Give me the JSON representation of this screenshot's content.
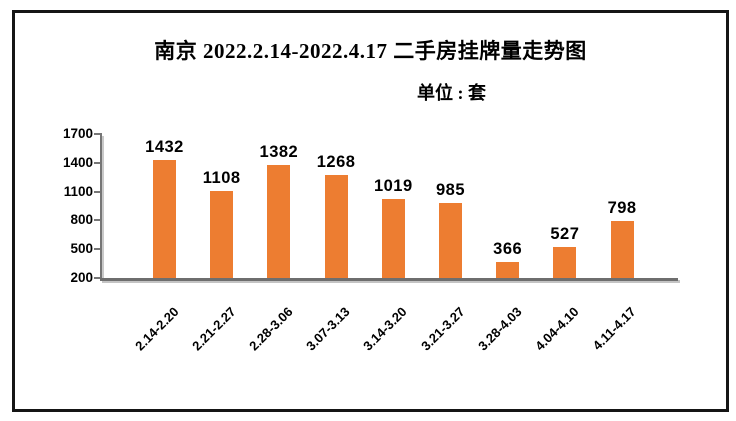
{
  "chart_data": {
    "type": "bar",
    "title": "南京 2022.2.14-2022.4.17 二手房挂牌量走势图",
    "unit_label": "单位 : 套",
    "categories": [
      "2.14-2.20",
      "2.21-2.27",
      "2.28-3.06",
      "3.07-3.13",
      "3.14-3.20",
      "3.21-3.27",
      "3.28-4.03",
      "4.04-4.10",
      "4.11-4.17"
    ],
    "values": [
      1432,
      1108,
      1382,
      1268,
      1019,
      985,
      366,
      527,
      798
    ],
    "xlabel": "",
    "ylabel": "",
    "ylim": [
      200,
      1700
    ],
    "yticks": [
      200,
      500,
      800,
      1100,
      1400,
      1700
    ],
    "grid": false,
    "legend_position": "none",
    "bar_color": "#ED7D31",
    "axis_color": "#767676",
    "axis_shadow_color": "#c9c9c9",
    "text_color": "#000000",
    "background_color": "#ffffff",
    "border_color": "#151515"
  }
}
